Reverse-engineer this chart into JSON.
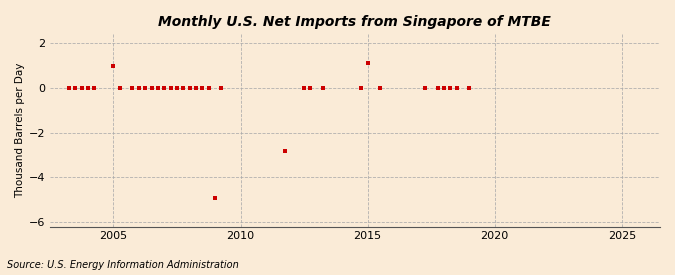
{
  "title": "Monthly U.S. Net Imports from Singapore of MTBE",
  "ylabel": "Thousand Barrels per Day",
  "source": "Source: U.S. Energy Information Administration",
  "background_color": "#faebd7",
  "marker_color": "#cc0000",
  "xlim": [
    2002.5,
    2026.5
  ],
  "ylim": [
    -6.2,
    2.4
  ],
  "yticks": [
    -6,
    -4,
    -2,
    0,
    2
  ],
  "xticks": [
    2005,
    2010,
    2015,
    2020,
    2025
  ],
  "data_points": [
    [
      2003.25,
      0
    ],
    [
      2003.5,
      0
    ],
    [
      2003.75,
      0
    ],
    [
      2004.0,
      0
    ],
    [
      2004.25,
      0
    ],
    [
      2005.0,
      1.0
    ],
    [
      2005.25,
      0
    ],
    [
      2005.75,
      0
    ],
    [
      2006.0,
      0
    ],
    [
      2006.25,
      0
    ],
    [
      2006.5,
      0
    ],
    [
      2006.75,
      0
    ],
    [
      2007.0,
      0
    ],
    [
      2007.25,
      0
    ],
    [
      2007.5,
      0
    ],
    [
      2007.75,
      0
    ],
    [
      2008.0,
      0
    ],
    [
      2008.25,
      0
    ],
    [
      2008.5,
      0
    ],
    [
      2008.75,
      0
    ],
    [
      2009.0,
      -4.9
    ],
    [
      2009.25,
      0
    ],
    [
      2011.75,
      -2.8
    ],
    [
      2012.5,
      0
    ],
    [
      2012.75,
      0
    ],
    [
      2013.25,
      0
    ],
    [
      2014.75,
      0
    ],
    [
      2015.0,
      1.1
    ],
    [
      2015.5,
      0
    ],
    [
      2017.25,
      0
    ],
    [
      2017.75,
      0
    ],
    [
      2018.0,
      0
    ],
    [
      2018.25,
      0
    ],
    [
      2018.5,
      0
    ],
    [
      2019.0,
      0
    ]
  ]
}
